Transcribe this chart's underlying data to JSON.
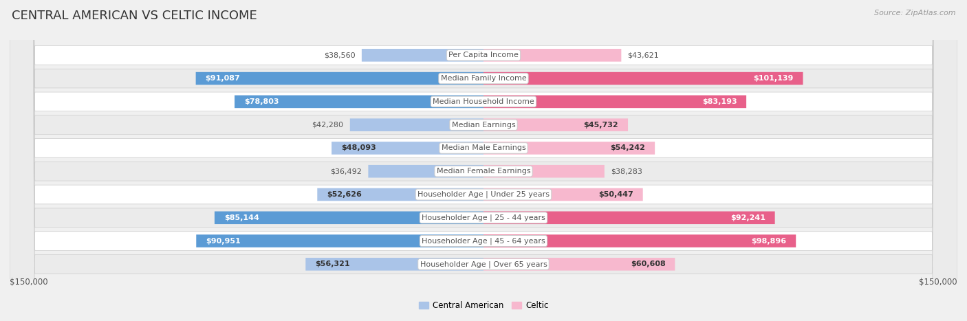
{
  "title": "CENTRAL AMERICAN VS CELTIC INCOME",
  "source": "Source: ZipAtlas.com",
  "categories": [
    "Per Capita Income",
    "Median Family Income",
    "Median Household Income",
    "Median Earnings",
    "Median Male Earnings",
    "Median Female Earnings",
    "Householder Age | Under 25 years",
    "Householder Age | 25 - 44 years",
    "Householder Age | 45 - 64 years",
    "Householder Age | Over 65 years"
  ],
  "central_american": [
    38560,
    91087,
    78803,
    42280,
    48093,
    36492,
    52626,
    85144,
    90951,
    56321
  ],
  "celtic": [
    43621,
    101139,
    83193,
    45732,
    54242,
    38283,
    50447,
    92241,
    98896,
    60608
  ],
  "ca_labels": [
    "$38,560",
    "$91,087",
    "$78,803",
    "$42,280",
    "$48,093",
    "$36,492",
    "$52,626",
    "$85,144",
    "$90,951",
    "$56,321"
  ],
  "celtic_labels": [
    "$43,621",
    "$101,139",
    "$83,193",
    "$45,732",
    "$54,242",
    "$38,283",
    "$50,447",
    "$92,241",
    "$98,896",
    "$60,608"
  ],
  "ca_color_light": "#aac4e8",
  "ca_color_dark": "#5b9bd5",
  "celtic_color_light": "#f7b8ce",
  "celtic_color_dark": "#e8608a",
  "ca_dark_threshold": 70000,
  "celtic_dark_threshold": 70000,
  "max_value": 150000,
  "x_label_left": "$150,000",
  "x_label_right": "$150,000",
  "legend_ca": "Central American",
  "legend_celtic": "Celtic",
  "bg_color": "#f0f0f0",
  "row_bg_even": "#ffffff",
  "row_bg_odd": "#ebebeb",
  "title_fontsize": 13,
  "label_fontsize": 8,
  "category_fontsize": 8,
  "source_fontsize": 8
}
